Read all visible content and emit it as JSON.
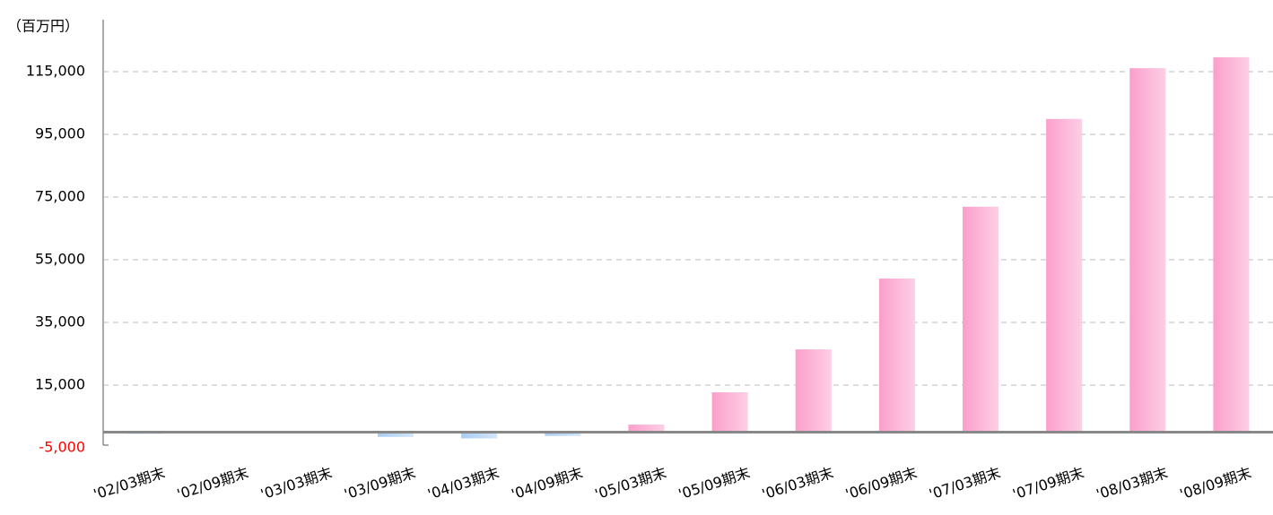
{
  "chart_data": {
    "type": "bar",
    "y_unit_label": "（百万円）",
    "categories": [
      "'02/03期末",
      "'02/09期末",
      "'03/03期末",
      "'03/09期末",
      "'04/03期末",
      "'04/09期末",
      "'05/03期末",
      "'05/09期末",
      "'06/03期末",
      "'06/09期末",
      "'07/03期末",
      "'07/09期末",
      "'08/03期末",
      "'08/09期末"
    ],
    "values": [
      -500,
      0,
      0,
      -1500,
      -2000,
      -1200,
      2400,
      12700,
      26400,
      49000,
      71900,
      99900,
      116100,
      119600
    ],
    "positive_color": "#fb9fcb",
    "negative_color": "#a9cdf3",
    "negative_tick_color": "#ff0000",
    "ylim": [
      -5000,
      130000
    ],
    "yticks": [
      {
        "value": -5000,
        "label": "-5,000"
      },
      {
        "value": 15000,
        "label": "15,000"
      },
      {
        "value": 35000,
        "label": "35,000"
      },
      {
        "value": 55000,
        "label": "55,000"
      },
      {
        "value": 75000,
        "label": "75,000"
      },
      {
        "value": 95000,
        "label": "95,000"
      },
      {
        "value": 115000,
        "label": "115,000"
      }
    ],
    "grid": true
  }
}
